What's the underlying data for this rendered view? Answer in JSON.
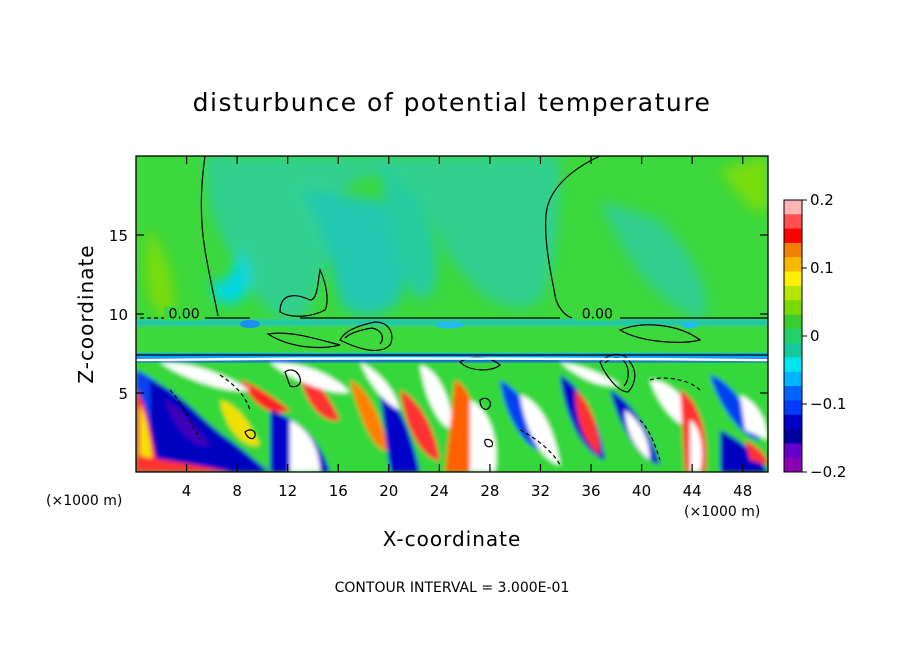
{
  "chart_data": {
    "type": "heatmap",
    "title": "disturbunce of potential temperature",
    "xlabel": "X-coordinate",
    "ylabel": "Z-coordinate",
    "x_unit": "(×1000 m)",
    "y_unit": "(×1000 m)",
    "xlim": [
      0,
      50
    ],
    "ylim": [
      0,
      20
    ],
    "x_ticks": [
      4,
      8,
      12,
      16,
      20,
      24,
      28,
      32,
      36,
      40,
      44,
      48
    ],
    "y_ticks": [
      5,
      10,
      15
    ],
    "colorbar": {
      "range": [
        -0.2,
        0.2
      ],
      "ticks": [
        0.2,
        0.1,
        0,
        -0.1,
        -0.2
      ],
      "tick_labels": [
        "0.2",
        "0.1",
        "0",
        "−0.1",
        "−0.2"
      ],
      "colors": [
        "#ffb4b4",
        "#ff5050",
        "#ff0000",
        "#f08000",
        "#f8b800",
        "#fff000",
        "#b4e600",
        "#78dc00",
        "#3ccc2e",
        "#20d268",
        "#14c8a0",
        "#00e6f0",
        "#00b4ff",
        "#0064ff",
        "#003cff",
        "#0000c8",
        "#0000a0",
        "#6400c8",
        "#8c00b4"
      ]
    },
    "contour_labels": [
      {
        "text": "0.00",
        "x": 3.8,
        "z": 9.7
      },
      {
        "text": "0.00",
        "x": 36.5,
        "z": 9.7
      }
    ],
    "contour_interval": "CONTOUR INTERVAL = 3.000E-01",
    "grid": false
  }
}
